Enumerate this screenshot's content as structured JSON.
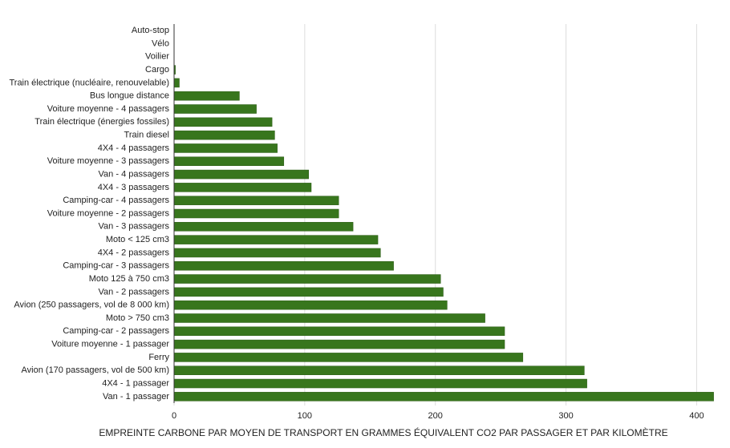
{
  "chart_data": {
    "type": "hbar",
    "title": "EMPREINTE CARBONE PAR MOYEN DE TRANSPORT EN GRAMMES ÉQUIVALENT CO2 PAR PASSAGER ET PAR KILOMÈTRE",
    "categories": [
      "Auto-stop",
      "Vélo",
      "Voilier",
      "Cargo",
      "Train électrique (nucléaire, renouvelable)",
      "Bus longue distance",
      "Voiture moyenne - 4 passagers",
      "Train électrique (énergies fossiles)",
      "Train diesel",
      "4X4 - 4 passagers",
      "Voiture moyenne - 3 passagers",
      "Van - 4 passagers",
      "4X4 - 3 passagers",
      "Camping-car - 4 passagers",
      "Voiture moyenne - 2 passagers",
      "Van - 3 passagers",
      "Moto < 125 cm3",
      "4X4 - 2 passagers",
      "Camping-car - 3 passagers",
      "Moto 125 à 750 cm3",
      "Van - 2 passagers",
      "Avion (250 passagers, vol de 8 000 km)",
      "Moto > 750 cm3",
      "Camping-car - 2 passagers",
      "Voiture moyenne - 1 passager",
      "Ferry",
      "Avion (170 passagers, vol de 500 km)",
      "4X4 - 1 passager",
      "Van - 1 passager"
    ],
    "values": [
      0,
      0,
      0,
      1,
      4,
      50,
      63,
      75,
      77,
      79,
      84,
      103,
      105,
      126,
      126,
      137,
      156,
      158,
      168,
      204,
      206,
      209,
      238,
      253,
      253,
      267,
      314,
      316,
      413
    ],
    "color": "#38761d",
    "xlim": [
      0,
      420
    ],
    "xticks": [
      0,
      100,
      200,
      300,
      400
    ],
    "grid": true
  }
}
